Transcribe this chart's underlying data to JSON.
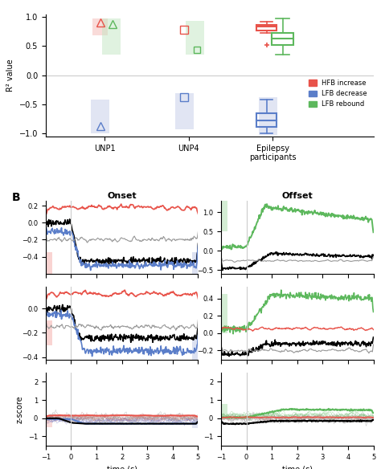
{
  "panel_a": {
    "categories": [
      "UNP1",
      "UNP4",
      "Epilepsy\nparticipants"
    ],
    "red_triangle_unp1": [
      0.9
    ],
    "green_triangle_unp1": [
      0.88
    ],
    "blue_triangle_unp1": [
      -0.87
    ],
    "red_square_unp4": [
      0.78
    ],
    "green_squares_unp4": [
      0.44,
      0.42
    ],
    "blue_square_unp4": [
      -0.38
    ],
    "red_box": {
      "q1": 0.77,
      "median": 0.83,
      "q3": 0.87,
      "whisker_low": 0.73,
      "whisker_high": 0.92,
      "outlier": 0.52
    },
    "green_box": {
      "q1": 0.52,
      "median": 0.63,
      "q3": 0.72,
      "whisker_low": 0.35,
      "whisker_high": 0.97
    },
    "blue_box": {
      "q1": -0.88,
      "median": -0.78,
      "q3": -0.65,
      "whisker_low": -1.0,
      "whisker_high": -0.42
    }
  },
  "colors": {
    "red": "#e8534a",
    "blue": "#5b7ec9",
    "green": "#5db85d",
    "red_bg": "#f5b8b5",
    "green_bg": "#c3e6c3",
    "blue_bg": "#c5cde8",
    "gray": "#999999",
    "darkgray": "#555555",
    "lightgray": "#cccccc"
  },
  "legend": [
    "HFB increase",
    "LFB decrease",
    "LFB rebound"
  ]
}
